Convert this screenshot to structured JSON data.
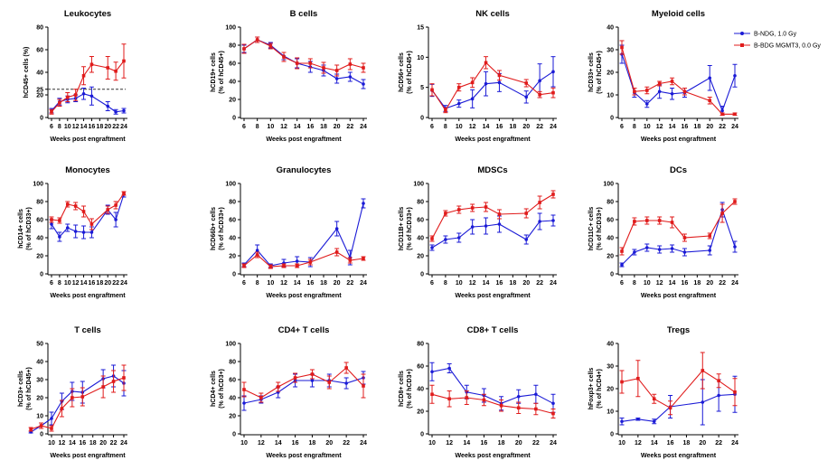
{
  "colors": {
    "ndg": "#1a1ad6",
    "bdg": "#e01b1b"
  },
  "legend": {
    "ndg": "B-NDG, 1.0 Gy",
    "bdg": "B-BDG MGMT3, 0.0 Gy"
  },
  "chart_data": [
    {
      "type": "line",
      "title": "Leukocytes",
      "ylabel": [
        "hCD45+ cells (%)"
      ],
      "xlabel": "Weeks post engraftment",
      "x": [
        6,
        8,
        10,
        12,
        14,
        16,
        20,
        22,
        24
      ],
      "ylim": [
        0,
        80
      ],
      "yticks": [
        0,
        20,
        25,
        40,
        60,
        80
      ],
      "reference_line": 25,
      "series": [
        {
          "key": "ndg",
          "values": [
            6,
            14,
            16,
            17,
            21,
            19,
            10,
            5,
            6
          ],
          "err": [
            2,
            3,
            3,
            3,
            5,
            8,
            4,
            2,
            2
          ]
        },
        {
          "key": "bdg",
          "values": [
            5,
            13,
            18,
            20,
            37,
            47,
            44,
            41,
            50
          ],
          "err": [
            2,
            3,
            4,
            5,
            8,
            7,
            10,
            8,
            15
          ]
        }
      ]
    },
    {
      "type": "line",
      "title": "B cells",
      "ylabel": [
        "hCD19+ cells",
        "(% of hCD45+)"
      ],
      "xlabel": "Weeks post engraftment",
      "x": [
        6,
        8,
        10,
        12,
        14,
        16,
        18,
        20,
        22,
        24
      ],
      "ylim": [
        0,
        100
      ],
      "yticks": [
        0,
        20,
        40,
        60,
        80,
        100
      ],
      "series": [
        {
          "key": "ndg",
          "values": [
            76,
            86,
            80,
            68,
            60,
            56,
            52,
            43,
            45,
            37
          ],
          "err": [
            4,
            3,
            3,
            4,
            5,
            6,
            6,
            5,
            5,
            5
          ]
        },
        {
          "key": "bdg",
          "values": [
            76,
            86,
            79,
            67,
            60,
            60,
            55,
            52,
            59,
            55
          ],
          "err": [
            5,
            3,
            3,
            5,
            6,
            5,
            6,
            6,
            6,
            5
          ]
        }
      ]
    },
    {
      "type": "line",
      "title": "NK  cells",
      "ylabel": [
        "hCD56+ cells",
        "(% of hCD45+)"
      ],
      "xlabel": "Weeks post engraftment",
      "x": [
        6,
        8,
        10,
        12,
        14,
        16,
        20,
        22,
        24
      ],
      "ylim": [
        0,
        15
      ],
      "yticks": [
        0,
        5,
        10,
        15
      ],
      "series": [
        {
          "key": "ndg",
          "values": [
            4.5,
            1.5,
            2.3,
            3.1,
            5.6,
            5.8,
            3.4,
            6.1,
            7.6
          ],
          "err": [
            1.0,
            0.5,
            0.6,
            1.5,
            2.0,
            1.5,
            1.0,
            2.8,
            2.5
          ]
        },
        {
          "key": "bdg",
          "values": [
            4.6,
            1.2,
            5.0,
            5.8,
            9.1,
            7.0,
            5.7,
            3.8,
            4.1
          ],
          "err": [
            1.0,
            0.4,
            0.6,
            0.8,
            1.0,
            0.8,
            0.6,
            0.5,
            0.8
          ]
        }
      ]
    },
    {
      "type": "line",
      "title": "Myeloid cells",
      "ylabel": [
        "hCD33+ cells",
        "(% of hCD45+)"
      ],
      "xlabel": "Weeks post engraftment",
      "x": [
        6,
        8,
        10,
        12,
        14,
        16,
        20,
        22,
        24
      ],
      "ylim": [
        0,
        40
      ],
      "yticks": [
        0,
        10,
        20,
        30,
        40
      ],
      "series": [
        {
          "key": "ndg",
          "values": [
            28,
            11,
            6,
            11.5,
            10.5,
            11,
            17.5,
            3,
            18.5
          ],
          "err": [
            4,
            2,
            1.5,
            3,
            2.5,
            2,
            5.5,
            2,
            5
          ]
        },
        {
          "key": "bdg",
          "values": [
            31,
            11.5,
            12,
            15,
            16,
            11.5,
            7.5,
            1.5,
            1.5
          ],
          "err": [
            3,
            1.5,
            1.5,
            1,
            1.5,
            1.5,
            1.5,
            0.5,
            0.5
          ]
        }
      ]
    },
    {
      "type": "line",
      "title": "Monocytes",
      "ylabel": [
        "hCD14+ cells",
        "(% of hCD33+)"
      ],
      "xlabel": "Weeks post engraftment",
      "x": [
        6,
        8,
        10,
        12,
        14,
        16,
        20,
        22,
        24
      ],
      "ylim": [
        0,
        100
      ],
      "yticks": [
        0,
        20,
        40,
        60,
        80,
        100
      ],
      "series": [
        {
          "key": "ndg",
          "values": [
            55,
            41,
            51,
            47,
            46,
            46,
            71,
            60,
            88
          ],
          "err": [
            5,
            5,
            4,
            7,
            7,
            6,
            5,
            8,
            3
          ]
        },
        {
          "key": "bdg",
          "values": [
            60,
            59,
            77,
            75,
            69,
            55,
            71,
            76,
            89
          ],
          "err": [
            3,
            3,
            3,
            4,
            6,
            6,
            4,
            4,
            2
          ]
        }
      ]
    },
    {
      "type": "line",
      "title": "Granulocytes",
      "ylabel": [
        "hCD66b+ cells",
        "(% of hCD33+)"
      ],
      "xlabel": "Weeks post engraftment",
      "x": [
        6,
        8,
        10,
        12,
        14,
        16,
        20,
        22,
        24
      ],
      "ylim": [
        0,
        100
      ],
      "yticks": [
        0,
        20,
        40,
        60,
        80,
        100
      ],
      "series": [
        {
          "key": "ndg",
          "values": [
            10,
            26,
            9,
            12,
            14,
            13,
            50,
            18,
            78
          ],
          "err": [
            2,
            6,
            2,
            4,
            5,
            5,
            8,
            8,
            5
          ]
        },
        {
          "key": "bdg",
          "values": [
            9,
            21,
            8,
            9,
            9,
            13,
            24,
            15,
            17
          ],
          "err": [
            2,
            3,
            2,
            2,
            2,
            3,
            4,
            3,
            2
          ]
        }
      ]
    },
    {
      "type": "line",
      "title": "MDSCs",
      "ylabel": [
        "hCD11B+ cells",
        "(% of hCD33+)"
      ],
      "xlabel": "Weeks post engraftment",
      "x": [
        6,
        8,
        10,
        12,
        14,
        16,
        20,
        22,
        24
      ],
      "ylim": [
        0,
        100
      ],
      "yticks": [
        0,
        20,
        40,
        60,
        80,
        100
      ],
      "series": [
        {
          "key": "ndg",
          "values": [
            29,
            38,
            40,
            52,
            53,
            55,
            38,
            58,
            59
          ],
          "err": [
            3,
            4,
            5,
            8,
            9,
            9,
            5,
            9,
            6
          ]
        },
        {
          "key": "bdg",
          "values": [
            39,
            67,
            71,
            73,
            74,
            66,
            67,
            79,
            88
          ],
          "err": [
            3,
            3,
            4,
            4,
            5,
            5,
            5,
            7,
            4
          ]
        }
      ]
    },
    {
      "type": "line",
      "title": "DCs",
      "ylabel": [
        "hCD11C+ cells",
        "(% of hCD33+)"
      ],
      "xlabel": "Weeks post engraftment",
      "x": [
        6,
        8,
        10,
        12,
        14,
        16,
        20,
        22,
        24
      ],
      "ylim": [
        0,
        100
      ],
      "yticks": [
        0,
        20,
        40,
        60,
        80,
        100
      ],
      "series": [
        {
          "key": "ndg",
          "values": [
            10,
            24,
            29,
            27,
            28,
            24,
            26,
            71,
            30
          ],
          "err": [
            2,
            3,
            4,
            4,
            4,
            4,
            5,
            8,
            6
          ]
        },
        {
          "key": "bdg",
          "values": [
            25,
            58,
            59,
            59,
            57,
            40,
            42,
            67,
            80
          ],
          "err": [
            4,
            4,
            4,
            4,
            6,
            4,
            3,
            10,
            3
          ]
        }
      ]
    },
    {
      "type": "line",
      "title": "T cells",
      "ylabel": [
        "hCD3+ cells",
        "(% of hCD45+)"
      ],
      "xlabel": "Weeks post engraftment",
      "x": [
        6,
        8,
        10,
        12,
        14,
        16,
        20,
        22,
        24
      ],
      "ylim": [
        0,
        50
      ],
      "yticks": [
        0,
        10,
        20,
        30,
        40,
        50
      ],
      "series": [
        {
          "key": "ndg",
          "values": [
            1,
            4.5,
            8.5,
            18,
            23.5,
            23,
            30.5,
            32,
            28
          ],
          "err": [
            0.5,
            1.5,
            3.5,
            4.5,
            5,
            6,
            5,
            6,
            7
          ]
        },
        {
          "key": "bdg",
          "values": [
            2.5,
            4.5,
            3,
            14,
            20,
            20.5,
            26,
            29,
            31
          ],
          "err": [
            1,
            1.5,
            1.5,
            4.5,
            5,
            5,
            6,
            6,
            7
          ]
        }
      ]
    },
    {
      "type": "line",
      "title": "CD4+ T cells",
      "ylabel": [
        "hCD4+ cells",
        "(% of hCD3+)"
      ],
      "xlabel": "Weeks post engraftment",
      "x": [
        10,
        12,
        14,
        16,
        18,
        20,
        22,
        24
      ],
      "ylim": [
        0,
        100
      ],
      "yticks": [
        0,
        20,
        40,
        60,
        80,
        100
      ],
      "series": [
        {
          "key": "ndg",
          "values": [
            34,
            38,
            46,
            59,
            59,
            59,
            56,
            62
          ],
          "err": [
            8,
            4,
            6,
            7,
            7,
            7,
            6,
            7
          ]
        },
        {
          "key": "bdg",
          "values": [
            49,
            40,
            52,
            62,
            66,
            57,
            73,
            53
          ],
          "err": [
            8,
            5,
            5,
            5,
            5,
            7,
            6,
            13
          ]
        }
      ]
    },
    {
      "type": "line",
      "title": "CD8+ T cells",
      "ylabel": [
        "hCD8+ cells",
        "(% of hCD3+)"
      ],
      "xlabel": "Weeks post engraftment",
      "x": [
        10,
        12,
        14,
        16,
        18,
        20,
        22,
        24
      ],
      "ylim": [
        0,
        80
      ],
      "yticks": [
        0,
        20,
        40,
        60,
        80
      ],
      "series": [
        {
          "key": "ndg",
          "values": [
            55,
            58,
            37,
            34,
            27,
            33,
            35,
            27
          ],
          "err": [
            8,
            4,
            6,
            6,
            6,
            6,
            8,
            8
          ]
        },
        {
          "key": "bdg",
          "values": [
            35,
            31,
            32,
            30,
            25,
            23,
            22,
            18
          ],
          "err": [
            8,
            7,
            6,
            5,
            5,
            5,
            5,
            4
          ]
        }
      ]
    },
    {
      "type": "line",
      "title": "Tregs",
      "ylabel": [
        "hFoxp3+ cells",
        "(% of hCD4+)"
      ],
      "xlabel": "Weeks post engraftment",
      "x": [
        10,
        12,
        14,
        16,
        20,
        22,
        24
      ],
      "ylim": [
        0,
        40
      ],
      "yticks": [
        0,
        10,
        20,
        30,
        40
      ],
      "series": [
        {
          "key": "ndg",
          "values": [
            5.5,
            6.5,
            5.5,
            12,
            14,
            17,
            17.5
          ],
          "err": [
            1.5,
            0.5,
            1,
            5,
            10,
            7,
            8
          ]
        },
        {
          "key": "bdg",
          "values": [
            23,
            24.5,
            15.5,
            11.5,
            28,
            23.5,
            18.5
          ],
          "err": [
            5,
            8,
            2,
            3,
            8,
            3,
            6
          ]
        }
      ]
    }
  ]
}
